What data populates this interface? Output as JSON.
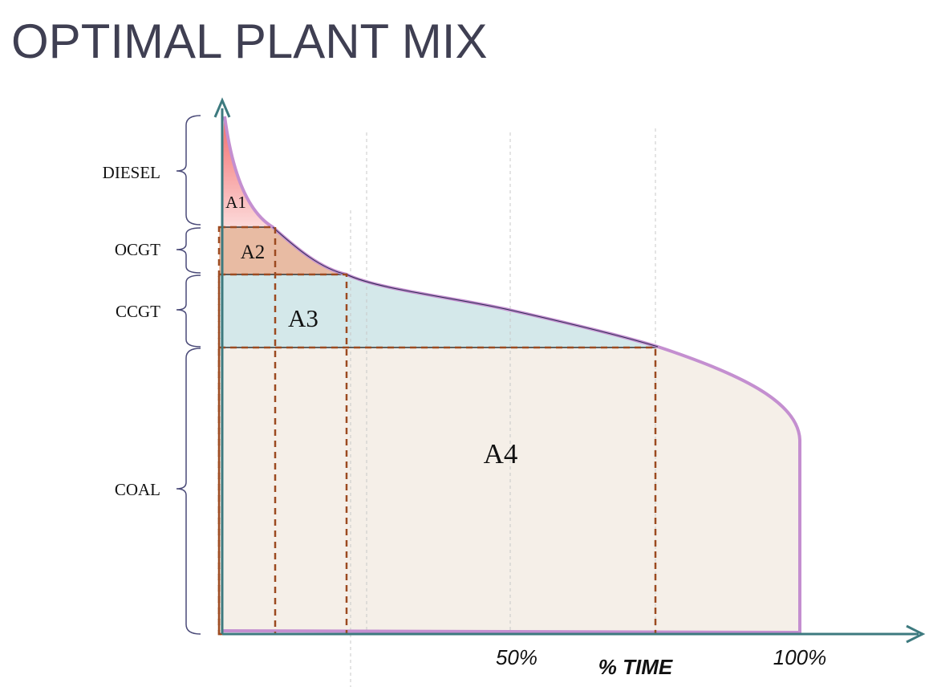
{
  "title": "OPTIMAL PLANT MIX",
  "plants": [
    "DIESEL",
    "OCGT",
    "CCGT",
    "COAL"
  ],
  "areas": [
    "A1",
    "A2",
    "A3",
    "A4"
  ],
  "x_axis": {
    "label": "% TIME",
    "ticks": [
      "50%",
      "100%"
    ]
  }
}
